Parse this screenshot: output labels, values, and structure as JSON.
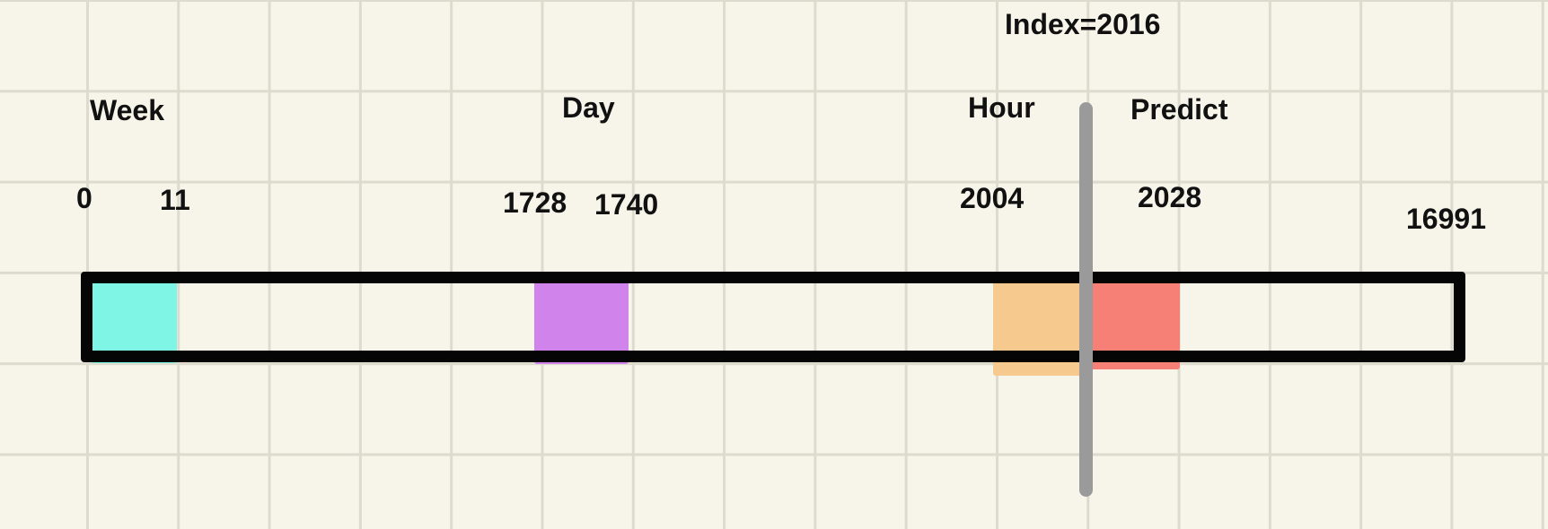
{
  "index_label": "Index=2016",
  "sections": {
    "week": "Week",
    "day": "Day",
    "hour": "Hour",
    "predict": "Predict"
  },
  "ticks": {
    "week_start": "0",
    "week_end": "11",
    "day_start": "1728",
    "day_end": "1740",
    "hour_start": "2004",
    "predict_end": "2028",
    "total_end": "16991"
  },
  "colors": {
    "week": "#7ff5e6",
    "day": "#d083ea",
    "hour": "#f6c98f",
    "predict": "#f67f76",
    "frame": "#050505",
    "cursor": "#9a9a9a",
    "grid": "#dcdbcd",
    "background": "#f7f5ea"
  }
}
